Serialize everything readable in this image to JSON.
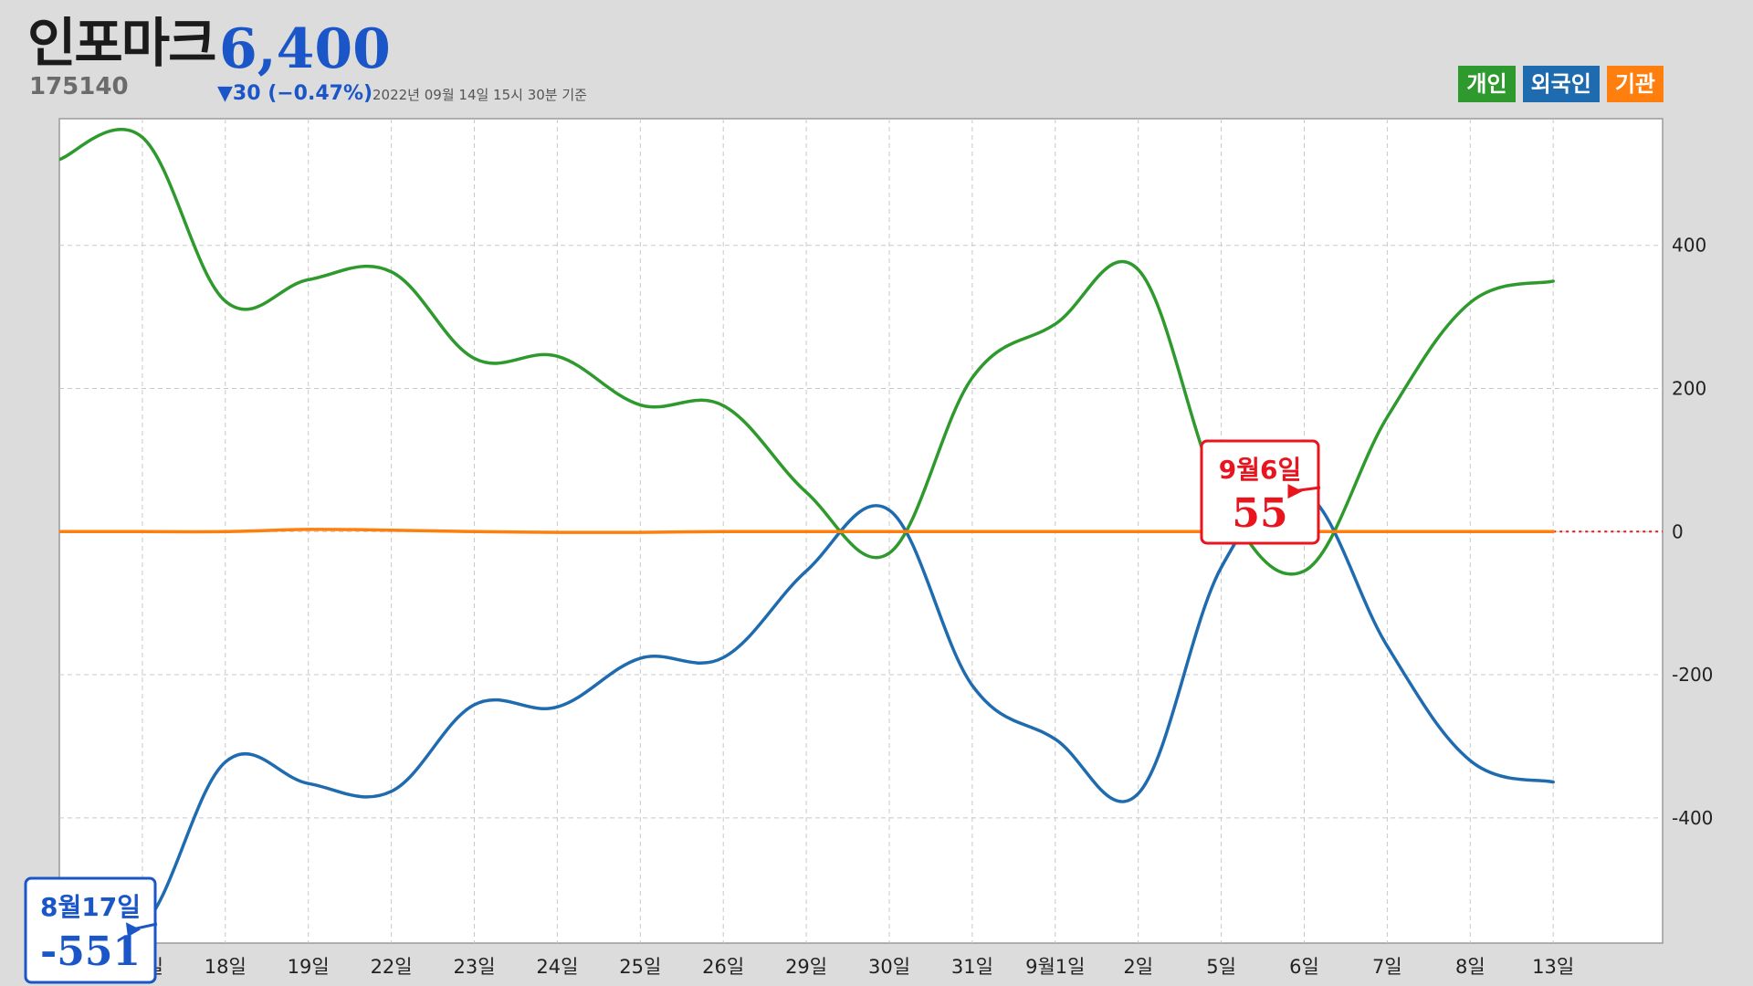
{
  "header": {
    "name": "인포마크",
    "code": "175140",
    "price": "6,400",
    "change": "▼30 (−0.47%)",
    "as_of": "2022년 09월 14일 15시 30분 기준"
  },
  "legend": [
    {
      "label": "개인",
      "color": "#2e9a2e"
    },
    {
      "label": "외국인",
      "color": "#1f6bb0"
    },
    {
      "label": "기관",
      "color": "#ff7f0e"
    }
  ],
  "chart_data": {
    "type": "line",
    "categories": [
      "",
      "17일",
      "18일",
      "19일",
      "22일",
      "23일",
      "24일",
      "25일",
      "26일",
      "29일",
      "30일",
      "31일",
      "9월1일",
      "2일",
      "5일",
      "6일",
      "7일",
      "8일",
      "13일"
    ],
    "series": [
      {
        "name": "개인",
        "color": "#2e9a2e",
        "values": [
          520,
          551,
          322,
          352,
          363,
          242,
          245,
          177,
          176,
          55,
          -30,
          215,
          290,
          366,
          50,
          -55,
          160,
          320,
          350
        ]
      },
      {
        "name": "외국인",
        "color": "#1f6bb0",
        "values": [
          -520,
          -551,
          -322,
          -352,
          -363,
          -242,
          -245,
          -177,
          -176,
          -55,
          30,
          -215,
          -290,
          -366,
          -50,
          55,
          -160,
          -320,
          -350
        ]
      },
      {
        "name": "기관",
        "color": "#ff7f0e",
        "values": [
          0,
          0,
          0,
          3,
          2,
          0,
          -1,
          -1,
          0,
          0,
          0,
          0,
          0,
          0,
          0,
          0,
          0,
          0,
          0
        ]
      }
    ],
    "y_ticks": [
      400,
      200,
      0,
      -200,
      -400
    ],
    "y_tick_labels": [
      "400",
      "200",
      "0",
      "-200",
      "-400"
    ],
    "ylim": [
      -575,
      577
    ],
    "grid": true,
    "legend_position": "top-right",
    "annotations": [
      {
        "date": "8월17일",
        "value": "-551",
        "color": "#1a56c8",
        "series": "외국인",
        "index": 1
      },
      {
        "date": "9월6일",
        "value": "55",
        "color": "#e8141e",
        "series": "외국인",
        "index": 15
      }
    ]
  }
}
